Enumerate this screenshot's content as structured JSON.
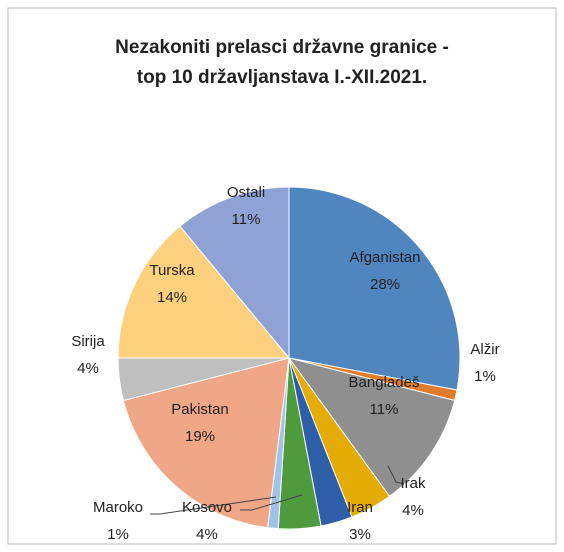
{
  "chart_data": {
    "type": "pie",
    "title": [
      "Nezakoniti prelasci državne granice -",
      "top 10 državljanstava I.-XII.2021."
    ],
    "categories": [
      "Afganistan",
      "Alžir",
      "Bangladeš",
      "Irak",
      "Iran",
      "Kosovo",
      "Maroko",
      "Pakistan",
      "Sirija",
      "Turska",
      "Ostali"
    ],
    "values": [
      28,
      1,
      11,
      4,
      3,
      4,
      1,
      19,
      4,
      14,
      11
    ],
    "value_labels": [
      "28%",
      "1%",
      "11%",
      "4%",
      "3%",
      "4%",
      "1%",
      "19%",
      "4%",
      "14%",
      "11%"
    ],
    "colors": [
      "#4f86c0",
      "#e07b2a",
      "#8f8f8f",
      "#e5ac05",
      "#2f5ea8",
      "#4f9a3c",
      "#9fc3e8",
      "#f0a787",
      "#bfbfbf",
      "#ffd17f",
      "#8ea2d6"
    ]
  }
}
